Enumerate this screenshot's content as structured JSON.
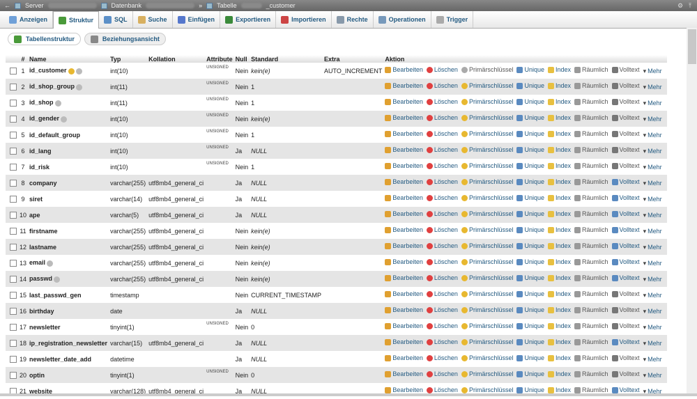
{
  "breadcrumb": {
    "server_label": "Server",
    "database_label": "Datenbank",
    "table_label": "Tabelle",
    "table_name": "_customer"
  },
  "tabs": [
    {
      "label": "Anzeigen",
      "icon": "browse-icon",
      "color": "#6fa0d8"
    },
    {
      "label": "Struktur",
      "icon": "structure-icon",
      "color": "#4a9a3a",
      "active": true
    },
    {
      "label": "SQL",
      "icon": "sql-icon",
      "color": "#5b8fc7"
    },
    {
      "label": "Suche",
      "icon": "search-icon",
      "color": "#d8b060"
    },
    {
      "label": "Einfügen",
      "icon": "insert-icon",
      "color": "#5577cc"
    },
    {
      "label": "Exportieren",
      "icon": "export-icon",
      "color": "#3a8a3a"
    },
    {
      "label": "Importieren",
      "icon": "import-icon",
      "color": "#cc4444"
    },
    {
      "label": "Rechte",
      "icon": "privileges-icon",
      "color": "#8899aa"
    },
    {
      "label": "Operationen",
      "icon": "wrench-icon",
      "color": "#7799bb"
    },
    {
      "label": "Trigger",
      "icon": "trigger-icon",
      "color": "#aaaaaa"
    }
  ],
  "subtabs": [
    {
      "label": "Tabellenstruktur",
      "icon": "structure-icon"
    },
    {
      "label": "Beziehungsansicht",
      "icon": "relation-icon"
    }
  ],
  "columns": [
    "#",
    "Name",
    "Typ",
    "Kollation",
    "Attribute",
    "Null",
    "Standard",
    "Extra",
    "Aktion"
  ],
  "actions": {
    "edit": "Bearbeiten",
    "drop": "Löschen",
    "primary": "Primärschlüssel",
    "unique": "Unique",
    "index": "Index",
    "spatial": "Räumlich",
    "fulltext": "Volltext",
    "more": "Mehr"
  },
  "rows": [
    {
      "n": "1",
      "name": "id_customer",
      "type": "int(10)",
      "coll": "",
      "attr": "UNSIGNED",
      "null": "Nein",
      "def": "kein(e)",
      "defItalic": true,
      "extra": "AUTO_INCREMENT",
      "keys": [
        "primary",
        "index"
      ],
      "isPrimary": true,
      "text": false
    },
    {
      "n": "2",
      "name": "id_shop_group",
      "type": "int(11)",
      "coll": "",
      "attr": "UNSIGNED",
      "null": "Nein",
      "def": "1",
      "extra": "",
      "keys": [
        "index"
      ],
      "text": false
    },
    {
      "n": "3",
      "name": "id_shop",
      "type": "int(11)",
      "coll": "",
      "attr": "UNSIGNED",
      "null": "Nein",
      "def": "1",
      "extra": "",
      "keys": [
        "index"
      ],
      "text": false
    },
    {
      "n": "4",
      "name": "id_gender",
      "type": "int(10)",
      "coll": "",
      "attr": "UNSIGNED",
      "null": "Nein",
      "def": "kein(e)",
      "defItalic": true,
      "extra": "",
      "keys": [
        "index"
      ],
      "text": false
    },
    {
      "n": "5",
      "name": "id_default_group",
      "type": "int(10)",
      "coll": "",
      "attr": "UNSIGNED",
      "null": "Nein",
      "def": "1",
      "extra": "",
      "keys": [],
      "text": false
    },
    {
      "n": "6",
      "name": "id_lang",
      "type": "int(10)",
      "coll": "",
      "attr": "UNSIGNED",
      "null": "Ja",
      "def": "NULL",
      "defItalic": true,
      "extra": "",
      "keys": [],
      "text": false
    },
    {
      "n": "7",
      "name": "id_risk",
      "type": "int(10)",
      "coll": "",
      "attr": "UNSIGNED",
      "null": "Nein",
      "def": "1",
      "extra": "",
      "keys": [],
      "text": false
    },
    {
      "n": "8",
      "name": "company",
      "type": "varchar(255)",
      "coll": "utf8mb4_general_ci",
      "attr": "",
      "null": "Ja",
      "def": "NULL",
      "defItalic": true,
      "extra": "",
      "keys": [],
      "text": true
    },
    {
      "n": "9",
      "name": "siret",
      "type": "varchar(14)",
      "coll": "utf8mb4_general_ci",
      "attr": "",
      "null": "Ja",
      "def": "NULL",
      "defItalic": true,
      "extra": "",
      "keys": [],
      "text": true
    },
    {
      "n": "10",
      "name": "ape",
      "type": "varchar(5)",
      "coll": "utf8mb4_general_ci",
      "attr": "",
      "null": "Ja",
      "def": "NULL",
      "defItalic": true,
      "extra": "",
      "keys": [],
      "text": true
    },
    {
      "n": "11",
      "name": "firstname",
      "type": "varchar(255)",
      "coll": "utf8mb4_general_ci",
      "attr": "",
      "null": "Nein",
      "def": "kein(e)",
      "defItalic": true,
      "extra": "",
      "keys": [],
      "text": true
    },
    {
      "n": "12",
      "name": "lastname",
      "type": "varchar(255)",
      "coll": "utf8mb4_general_ci",
      "attr": "",
      "null": "Nein",
      "def": "kein(e)",
      "defItalic": true,
      "extra": "",
      "keys": [],
      "text": true
    },
    {
      "n": "13",
      "name": "email",
      "type": "varchar(255)",
      "coll": "utf8mb4_general_ci",
      "attr": "",
      "null": "Nein",
      "def": "kein(e)",
      "defItalic": true,
      "extra": "",
      "keys": [
        "index"
      ],
      "text": true
    },
    {
      "n": "14",
      "name": "passwd",
      "type": "varchar(255)",
      "coll": "utf8mb4_general_ci",
      "attr": "",
      "null": "Nein",
      "def": "kein(e)",
      "defItalic": true,
      "extra": "",
      "keys": [
        "index"
      ],
      "text": true
    },
    {
      "n": "15",
      "name": "last_passwd_gen",
      "type": "timestamp",
      "coll": "",
      "attr": "",
      "null": "Nein",
      "def": "CURRENT_TIMESTAMP",
      "extra": "",
      "keys": [],
      "text": false
    },
    {
      "n": "16",
      "name": "birthday",
      "type": "date",
      "coll": "",
      "attr": "",
      "null": "Ja",
      "def": "NULL",
      "defItalic": true,
      "extra": "",
      "keys": [],
      "text": false
    },
    {
      "n": "17",
      "name": "newsletter",
      "type": "tinyint(1)",
      "coll": "",
      "attr": "UNSIGNED",
      "null": "Nein",
      "def": "0",
      "extra": "",
      "keys": [],
      "text": false
    },
    {
      "n": "18",
      "name": "ip_registration_newsletter",
      "type": "varchar(15)",
      "coll": "utf8mb4_general_ci",
      "attr": "",
      "null": "Ja",
      "def": "NULL",
      "defItalic": true,
      "extra": "",
      "keys": [],
      "text": true
    },
    {
      "n": "19",
      "name": "newsletter_date_add",
      "type": "datetime",
      "coll": "",
      "attr": "",
      "null": "Ja",
      "def": "NULL",
      "defItalic": true,
      "extra": "",
      "keys": [],
      "text": false
    },
    {
      "n": "20",
      "name": "optin",
      "type": "tinyint(1)",
      "coll": "",
      "attr": "UNSIGNED",
      "null": "Nein",
      "def": "0",
      "extra": "",
      "keys": [],
      "text": false
    },
    {
      "n": "21",
      "name": "website",
      "type": "varchar(128)",
      "coll": "utf8mb4_general_ci",
      "attr": "",
      "null": "Ja",
      "def": "NULL",
      "defItalic": true,
      "extra": "",
      "keys": [],
      "text": true
    }
  ]
}
